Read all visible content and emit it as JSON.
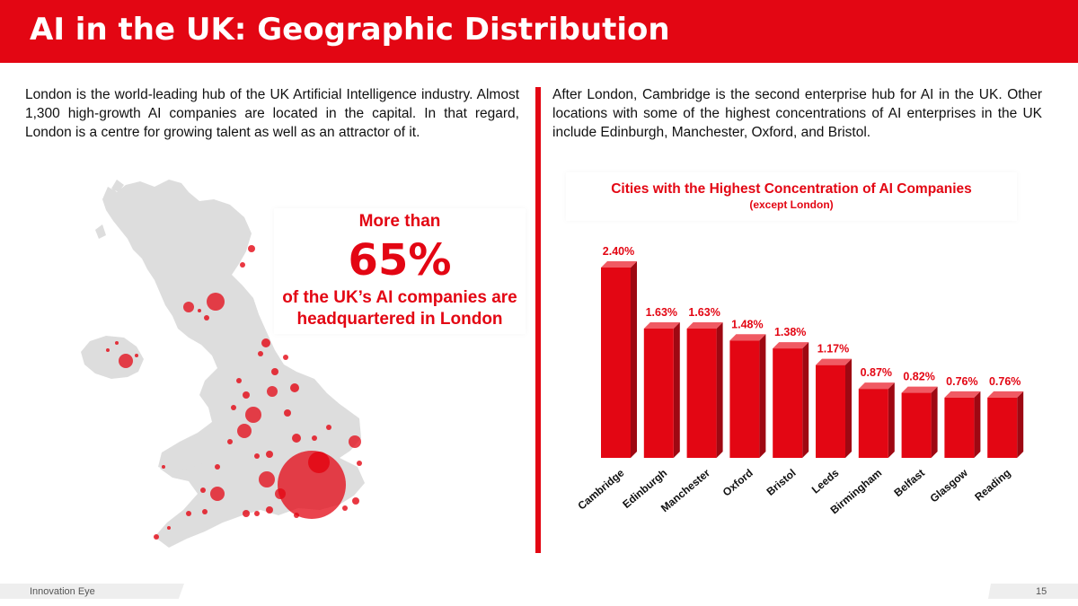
{
  "header": {
    "title": "AI in the UK: Geographic Distribution"
  },
  "left_text": "London is the world-leading hub of the UK Artificial Intelligence industry. Almost 1,300 high-growth AI companies are located in the capital. In that regard, London is a centre for growing talent as well as an attractor of it.",
  "right_text": "After London, Cambridge is the second enterprise hub for AI in the UK. Other locations with some of the highest concentrations of AI enterprises in the UK include Edinburgh, Manchester, Oxford, and Bristol.",
  "callout": {
    "lead": "More than",
    "value": "65%",
    "tail": "of the UK’s AI companies are headquartered in London"
  },
  "colors": {
    "accent": "#e30613",
    "bar_side": "#9e0812",
    "bar_top": "#f05a63",
    "map": "#dddddd"
  },
  "chart_data": {
    "type": "bar",
    "title": "Cities with the Highest Concentration of AI Companies",
    "subtitle": "(except London)",
    "categories": [
      "Cambridge",
      "Edinburgh",
      "Manchester",
      "Oxford",
      "Bristol",
      "Leeds",
      "Birmingham",
      "Belfast",
      "Glasgow",
      "Reading"
    ],
    "values": [
      2.4,
      1.63,
      1.63,
      1.48,
      1.38,
      1.17,
      0.87,
      0.82,
      0.76,
      0.76
    ],
    "value_labels": [
      "2.40%",
      "1.63%",
      "1.63%",
      "1.48%",
      "1.38%",
      "1.17%",
      "0.87%",
      "0.82%",
      "0.76%",
      "0.76%"
    ],
    "ylim": [
      0,
      2.4
    ],
    "grid": false,
    "legend": "none",
    "xlabel": "",
    "ylabel": ""
  },
  "footer": {
    "brand": "Innovation Eye",
    "page": "15"
  }
}
